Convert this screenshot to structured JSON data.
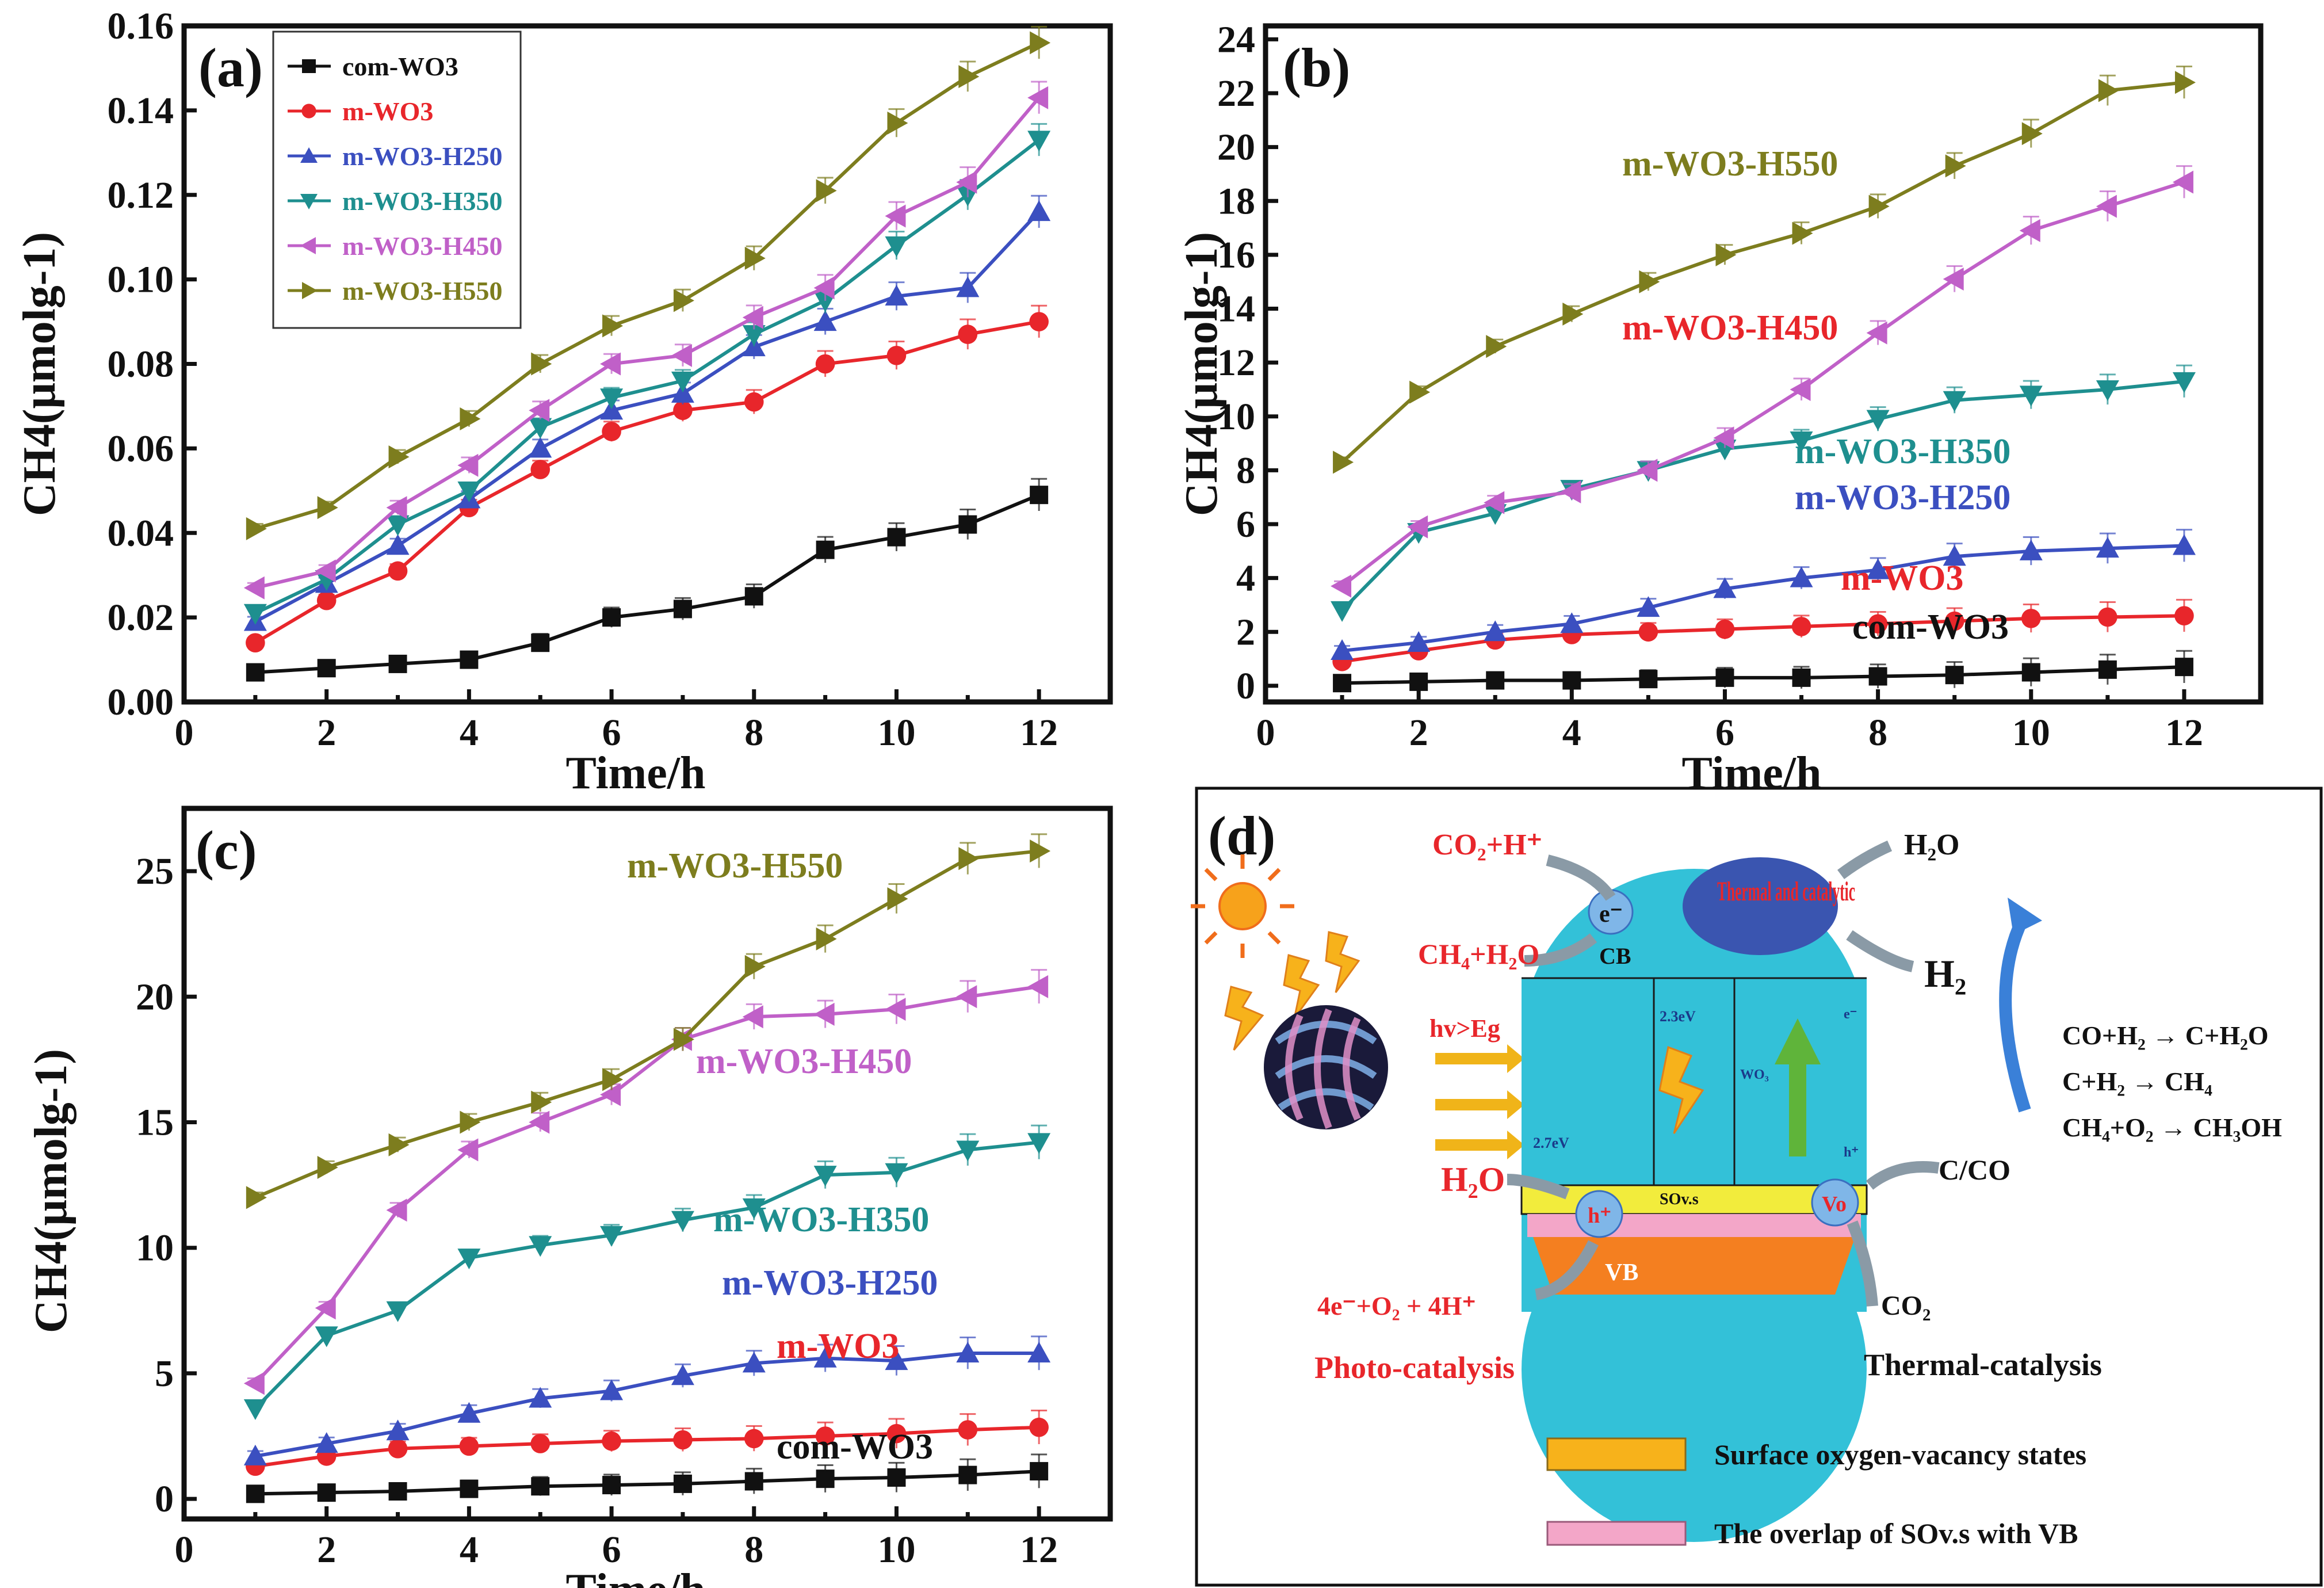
{
  "figure": {
    "sub_a": "(a)",
    "sub_b": "(b)",
    "sub_c": "(c)",
    "sub_d": "(d)"
  },
  "chart_data": [
    {
      "id": "a",
      "type": "line",
      "xlabel": "Time/h",
      "ylabel": "CH4(μmolg-1)",
      "xlim": [
        0,
        13
      ],
      "ylim": [
        0,
        0.16
      ],
      "xticks": [
        0,
        2,
        4,
        6,
        8,
        10,
        12
      ],
      "yticks": [
        0,
        0.02,
        0.04,
        0.06,
        0.08,
        0.1,
        0.12,
        0.14,
        0.16
      ],
      "ytick_labels": [
        "0.00",
        "0.02",
        "0.04",
        "0.06",
        "0.08",
        "0.10",
        "0.12",
        "0.14",
        "0.16"
      ],
      "x": [
        1,
        2,
        3,
        4,
        5,
        6,
        7,
        8,
        9,
        10,
        11,
        12
      ],
      "series": [
        {
          "name": "com-WO3",
          "color": "#111111",
          "marker": "square",
          "values": [
            0.007,
            0.008,
            0.009,
            0.01,
            0.014,
            0.02,
            0.022,
            0.025,
            0.036,
            0.039,
            0.042,
            0.049
          ]
        },
        {
          "name": "m-WO3",
          "color": "#e8262b",
          "marker": "circle",
          "values": [
            0.014,
            0.024,
            0.031,
            0.046,
            0.055,
            0.064,
            0.069,
            0.071,
            0.08,
            0.082,
            0.087,
            0.09
          ]
        },
        {
          "name": "m-WO3-H250",
          "color": "#3b4fc0",
          "marker": "tri-up",
          "values": [
            0.019,
            0.028,
            0.037,
            0.048,
            0.06,
            0.069,
            0.073,
            0.084,
            0.09,
            0.096,
            0.098,
            0.116
          ]
        },
        {
          "name": "m-WO3-H350",
          "color": "#1e8f8f",
          "marker": "tri-down",
          "values": [
            0.021,
            0.029,
            0.042,
            0.05,
            0.065,
            0.072,
            0.076,
            0.087,
            0.095,
            0.108,
            0.12,
            0.133
          ]
        },
        {
          "name": "m-WO3-H450",
          "color": "#c060c8",
          "marker": "tri-left",
          "values": [
            0.027,
            0.031,
            0.046,
            0.056,
            0.069,
            0.08,
            0.082,
            0.091,
            0.098,
            0.115,
            0.123,
            0.143
          ]
        },
        {
          "name": "m-WO3-H550",
          "color": "#7d7d1e",
          "marker": "tri-right",
          "values": [
            0.041,
            0.046,
            0.058,
            0.067,
            0.08,
            0.089,
            0.095,
            0.105,
            0.121,
            0.137,
            0.148,
            0.156
          ]
        }
      ],
      "legend": [
        "com-WO3",
        "m-WO3",
        "m-WO3-H250",
        "m-WO3-H350",
        "m-WO3-H450",
        "m-WO3-H550"
      ]
    },
    {
      "id": "b",
      "type": "line",
      "xlabel": "Time/h",
      "ylabel": "CH4(μmolg-1)",
      "xlim": [
        0,
        13
      ],
      "ylim": [
        -0.6,
        24.5
      ],
      "xticks": [
        0,
        2,
        4,
        6,
        8,
        10,
        12
      ],
      "yticks": [
        0,
        2,
        4,
        6,
        8,
        10,
        12,
        14,
        16,
        18,
        20,
        22,
        24
      ],
      "ytick_labels": [
        "0",
        "2",
        "4",
        "6",
        "8",
        "10",
        "12",
        "14",
        "16",
        "18",
        "20",
        "22",
        "24"
      ],
      "x": [
        1,
        2,
        3,
        4,
        5,
        6,
        7,
        8,
        9,
        10,
        11,
        12
      ],
      "series": [
        {
          "name": "com-WO3",
          "color": "#111111",
          "marker": "square",
          "values": [
            0.1,
            0.15,
            0.2,
            0.2,
            0.25,
            0.3,
            0.3,
            0.35,
            0.4,
            0.5,
            0.6,
            0.7
          ]
        },
        {
          "name": "m-WO3",
          "color": "#e8262b",
          "marker": "circle",
          "values": [
            0.9,
            1.3,
            1.7,
            1.9,
            2.0,
            2.1,
            2.2,
            2.3,
            2.4,
            2.5,
            2.55,
            2.6
          ]
        },
        {
          "name": "m-WO3-H250",
          "color": "#3b4fc0",
          "marker": "tri-up",
          "values": [
            1.3,
            1.6,
            2.0,
            2.3,
            2.9,
            3.6,
            4.0,
            4.3,
            4.8,
            5.0,
            5.1,
            5.2
          ]
        },
        {
          "name": "m-WO3-H350",
          "color": "#1e8f8f",
          "marker": "tri-down",
          "values": [
            2.8,
            5.7,
            6.4,
            7.3,
            8.0,
            8.8,
            9.1,
            9.9,
            10.6,
            10.8,
            11.0,
            11.3
          ]
        },
        {
          "name": "m-WO3-H450",
          "color": "#c060c8",
          "marker": "tri-left",
          "values": [
            3.7,
            5.9,
            6.8,
            7.2,
            8.0,
            9.2,
            11.0,
            13.1,
            15.1,
            16.9,
            17.8,
            18.7
          ]
        },
        {
          "name": "m-WO3-H550",
          "color": "#7d7d1e",
          "marker": "tri-right",
          "values": [
            8.3,
            10.9,
            12.6,
            13.8,
            15.0,
            16.0,
            16.8,
            17.8,
            19.3,
            20.5,
            22.1,
            22.4
          ]
        }
      ],
      "labels": [
        "m-WO3-H550",
        "m-WO3-H450",
        "m-WO3-H350",
        "m-WO3-H250",
        "m-WO3",
        "com-WO3"
      ]
    },
    {
      "id": "c",
      "type": "line",
      "xlabel": "Time/h",
      "ylabel": "CH4(μmolg-1)",
      "xlim": [
        0,
        13
      ],
      "ylim": [
        -0.8,
        27.5
      ],
      "xticks": [
        0,
        2,
        4,
        6,
        8,
        10,
        12
      ],
      "yticks": [
        0,
        5,
        10,
        15,
        20,
        25
      ],
      "ytick_labels": [
        "0",
        "5",
        "10",
        "15",
        "20",
        "25"
      ],
      "x": [
        1,
        2,
        3,
        4,
        5,
        6,
        7,
        8,
        9,
        10,
        11,
        12
      ],
      "series": [
        {
          "name": "com-WO3",
          "color": "#111111",
          "marker": "square",
          "values": [
            0.2,
            0.25,
            0.3,
            0.4,
            0.5,
            0.55,
            0.6,
            0.7,
            0.8,
            0.85,
            0.95,
            1.1
          ]
        },
        {
          "name": "m-WO3",
          "color": "#e8262b",
          "marker": "circle",
          "values": [
            1.3,
            1.7,
            2.0,
            2.1,
            2.2,
            2.3,
            2.35,
            2.4,
            2.5,
            2.6,
            2.75,
            2.85
          ]
        },
        {
          "name": "m-WO3-H250",
          "color": "#3b4fc0",
          "marker": "tri-up",
          "values": [
            1.7,
            2.2,
            2.7,
            3.4,
            4.0,
            4.3,
            4.9,
            5.4,
            5.6,
            5.5,
            5.8,
            5.8
          ]
        },
        {
          "name": "m-WO3-H350",
          "color": "#1e8f8f",
          "marker": "tri-down",
          "values": [
            3.6,
            6.5,
            7.5,
            9.6,
            10.1,
            10.5,
            11.1,
            11.6,
            12.9,
            13.0,
            13.9,
            14.2
          ]
        },
        {
          "name": "m-WO3-H450",
          "color": "#c060c8",
          "marker": "tri-left",
          "values": [
            4.6,
            7.6,
            11.5,
            13.9,
            15.0,
            16.1,
            18.3,
            19.2,
            19.3,
            19.5,
            20.0,
            20.4
          ]
        },
        {
          "name": "m-WO3-H550",
          "color": "#7d7d1e",
          "marker": "tri-right",
          "values": [
            12.0,
            13.2,
            14.1,
            15.0,
            15.8,
            16.7,
            18.3,
            21.2,
            22.3,
            23.9,
            25.5,
            25.8
          ]
        }
      ],
      "labels": [
        "m-WO3-H550",
        "m-WO3-H450",
        "m-WO3-H350",
        "m-WO3-H250",
        "m-WO3",
        "com-WO3"
      ]
    }
  ],
  "diagram": {
    "co2_h": "CO₂+H⁺",
    "h2o_top": "H₂O",
    "ch4_h2o": "CH₄+H₂O",
    "h2": "H₂",
    "electron": "e⁻",
    "cb": "CB",
    "thermal": "Thermal and catalytic",
    "hv": "hv>Eg",
    "gap23": "2.3eV",
    "gap27": "2.7eV",
    "wo3": "WO₃",
    "e_small": "e⁻",
    "h_small": "h⁺",
    "h2o_left": "H₂O",
    "sovs": "SOv.s",
    "hplus": "h⁺",
    "vo": "Vo",
    "vb": "VB",
    "o2eq": "4e⁻+O₂ + 4H⁺",
    "co2_bottom": "CO₂",
    "c_co": "C/CO",
    "r1": "CO+H₂ → C+H₂O",
    "r2": "C+H₂ → CH₄",
    "r3": "CH₄+O₂ → CH₃OH",
    "photo": "Photo-catalysis",
    "thermalcat": "Thermal-catalysis",
    "legend1": "Surface oxygen-vacancy states",
    "legend2": "The overlap of SOv.s with VB",
    "colors": {
      "band": "#33c1d8",
      "vbcol": "#f47f20",
      "sovs": "#f2ec3c",
      "overlap": "#f3a6c8",
      "thermalblob": "#3a55b0",
      "red": "#e8262b"
    }
  }
}
